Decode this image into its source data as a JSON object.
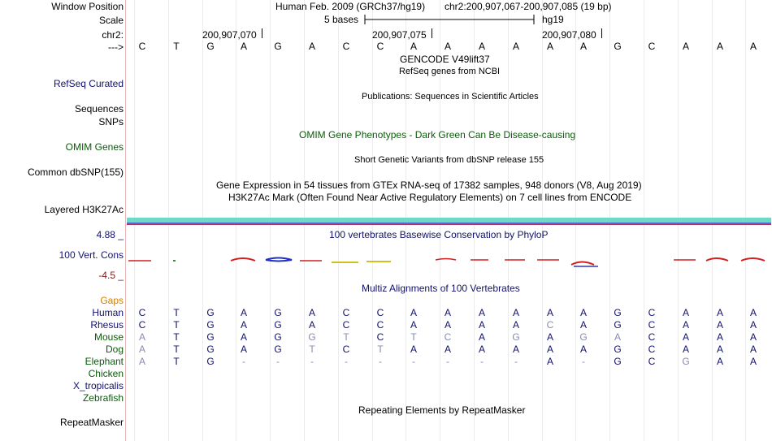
{
  "header": {
    "window_position_label": "Window Position",
    "assembly": "Human Feb. 2009 (GRCh37/hg19)",
    "position": "chr2:200,907,067-200,907,085 (19 bp)",
    "scale_label": "Scale",
    "scale_bar_text": "5 bases",
    "scale_db": "hg19",
    "chrom_label": "chr2:",
    "ticks": [
      "200,907,070",
      "200,907,075",
      "200,907,080"
    ],
    "strand_label": "--->"
  },
  "reference_bases": [
    "C",
    "T",
    "G",
    "A",
    "G",
    "A",
    "C",
    "C",
    "A",
    "A",
    "A",
    "A",
    "A",
    "A",
    "G",
    "C",
    "A",
    "A",
    "A"
  ],
  "tracks": {
    "gencode_title": "GENCODE V49lift37",
    "refseq_title": "RefSeq genes from NCBI",
    "refseq_label": "RefSeq Curated",
    "publications_title": "Publications: Sequences in Scientific Articles",
    "sequences_label": "Sequences",
    "snps_label": "SNPs",
    "omim_title": "OMIM Gene Phenotypes - Dark Green Can Be Disease-causing",
    "omim_label": "OMIM Genes",
    "dbsnp_title": "Short Genetic Variants from dbSNP release 155",
    "dbsnp_label": "Common dbSNP(155)",
    "gtex_title": "Gene Expression in 54 tissues from GTEx RNA-seq of 17382 samples, 948 donors (V8, Aug 2019)",
    "h3k27ac_title": "H3K27Ac Mark (Often Found Near Active Regulatory Elements) on 7 cell lines from ENCODE",
    "h3k27ac_label": "Layered H3K27Ac",
    "cons_max": "4.88 _",
    "cons_title": "100 vertebrates Basewise Conservation by PhyloP",
    "cons_label": "100 Vert. Cons",
    "cons_min": "-4.5 _",
    "multiz_title": "Multiz Alignments of 100 Vertebrates",
    "gaps_label": "Gaps",
    "repeat_title": "Repeating Elements by RepeatMasker",
    "repeat_label": "RepeatMasker"
  },
  "alignments": [
    {
      "species": "Human",
      "color": "#11116e",
      "bases": [
        "C",
        "T",
        "G",
        "A",
        "G",
        "A",
        "C",
        "C",
        "A",
        "A",
        "A",
        "A",
        "A",
        "A",
        "G",
        "C",
        "A",
        "A",
        "A"
      ],
      "diff": []
    },
    {
      "species": "Rhesus",
      "color": "#11116e",
      "bases": [
        "C",
        "T",
        "G",
        "A",
        "G",
        "A",
        "C",
        "C",
        "A",
        "A",
        "A",
        "A",
        "C",
        "A",
        "G",
        "C",
        "A",
        "A",
        "A"
      ],
      "diff": [
        12
      ]
    },
    {
      "species": "Mouse",
      "color": "#0b5a0b",
      "bases": [
        "A",
        "T",
        "G",
        "A",
        "G",
        "G",
        "T",
        "C",
        "T",
        "C",
        "A",
        "G",
        "A",
        "G",
        "A",
        "C",
        "A",
        "A",
        "A"
      ],
      "diff": [
        0,
        5,
        6,
        8,
        9,
        11,
        13,
        14
      ]
    },
    {
      "species": "Dog",
      "color": "#0b5a0b",
      "bases": [
        "A",
        "T",
        "G",
        "A",
        "G",
        "T",
        "C",
        "T",
        "A",
        "A",
        "A",
        "A",
        "A",
        "A",
        "G",
        "C",
        "A",
        "A",
        "A"
      ],
      "diff": [
        0,
        5,
        7
      ]
    },
    {
      "species": "Elephant",
      "color": "#0b5a0b",
      "bases": [
        "A",
        "T",
        "G",
        "-",
        "-",
        "-",
        "-",
        "-",
        "-",
        "-",
        "-",
        "-",
        "A",
        "-",
        "G",
        "C",
        "G",
        "A",
        "A"
      ],
      "diff": [
        0,
        16
      ]
    },
    {
      "species": "Chicken",
      "color": "#0b5a0b",
      "bases": [],
      "diff": []
    },
    {
      "species": "X_tropicalis",
      "color": "#11116e",
      "bases": [],
      "diff": []
    },
    {
      "species": "Zebrafish",
      "color": "#0b5a0b",
      "bases": [],
      "diff": []
    }
  ]
}
